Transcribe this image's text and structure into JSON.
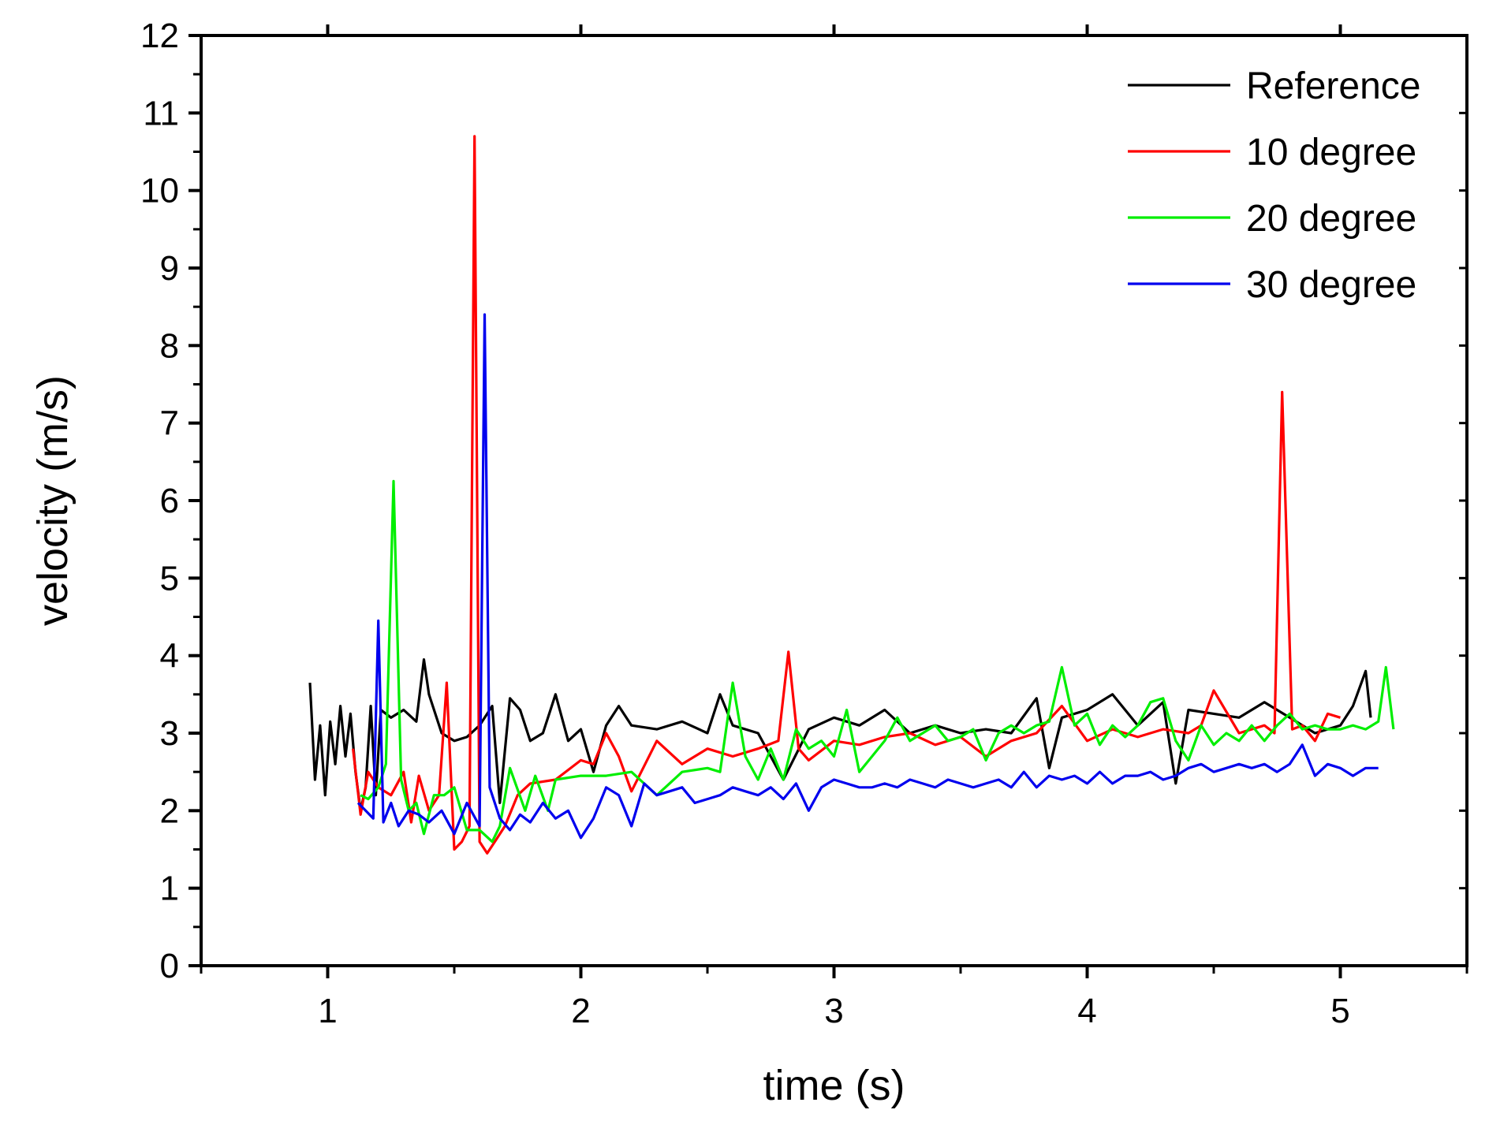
{
  "chart_data": {
    "type": "line",
    "title": "",
    "xlabel": "time (s)",
    "ylabel": "velocity (m/s)",
    "xlim": [
      0.5,
      5.5
    ],
    "ylim": [
      0,
      12
    ],
    "xticks": [
      1,
      2,
      3,
      4,
      5
    ],
    "yticks": [
      0,
      1,
      2,
      3,
      4,
      5,
      6,
      7,
      8,
      9,
      10,
      11,
      12
    ],
    "grid": false,
    "legend_position": "top-right",
    "series": [
      {
        "name": "Reference",
        "color": "#000000",
        "x": [
          0.93,
          0.95,
          0.97,
          0.99,
          1.01,
          1.03,
          1.05,
          1.07,
          1.09,
          1.11,
          1.13,
          1.15,
          1.17,
          1.19,
          1.21,
          1.25,
          1.3,
          1.35,
          1.38,
          1.4,
          1.45,
          1.5,
          1.55,
          1.6,
          1.65,
          1.68,
          1.72,
          1.76,
          1.8,
          1.85,
          1.9,
          1.95,
          2.0,
          2.05,
          2.1,
          2.15,
          2.2,
          2.3,
          2.4,
          2.5,
          2.55,
          2.6,
          2.7,
          2.8,
          2.9,
          3.0,
          3.1,
          3.2,
          3.3,
          3.4,
          3.5,
          3.6,
          3.7,
          3.8,
          3.85,
          3.9,
          4.0,
          4.1,
          4.2,
          4.3,
          4.35,
          4.4,
          4.5,
          4.6,
          4.7,
          4.8,
          4.9,
          5.0,
          5.05,
          5.1,
          5.12
        ],
        "y": [
          3.65,
          2.4,
          3.1,
          2.2,
          3.15,
          2.6,
          3.35,
          2.7,
          3.25,
          2.5,
          2.0,
          2.3,
          3.35,
          2.2,
          3.3,
          3.2,
          3.3,
          3.15,
          3.95,
          3.5,
          3.0,
          2.9,
          2.95,
          3.1,
          3.35,
          2.1,
          3.45,
          3.3,
          2.9,
          3.0,
          3.5,
          2.9,
          3.05,
          2.5,
          3.1,
          3.35,
          3.1,
          3.05,
          3.15,
          3.0,
          3.5,
          3.1,
          3.0,
          2.4,
          3.05,
          3.2,
          3.1,
          3.3,
          3.0,
          3.1,
          3.0,
          3.05,
          3.0,
          3.45,
          2.55,
          3.2,
          3.3,
          3.5,
          3.1,
          3.4,
          2.35,
          3.3,
          3.25,
          3.2,
          3.4,
          3.2,
          3.0,
          3.1,
          3.35,
          3.8,
          3.2
        ]
      },
      {
        "name": "10 degree",
        "color": "#ff0000",
        "x": [
          1.1,
          1.13,
          1.16,
          1.2,
          1.25,
          1.3,
          1.33,
          1.36,
          1.4,
          1.44,
          1.47,
          1.5,
          1.53,
          1.56,
          1.58,
          1.6,
          1.63,
          1.66,
          1.7,
          1.75,
          1.8,
          1.9,
          2.0,
          2.05,
          2.1,
          2.15,
          2.2,
          2.3,
          2.4,
          2.5,
          2.6,
          2.7,
          2.78,
          2.82,
          2.86,
          2.9,
          3.0,
          3.1,
          3.2,
          3.3,
          3.4,
          3.5,
          3.6,
          3.7,
          3.8,
          3.9,
          4.0,
          4.1,
          4.2,
          4.3,
          4.4,
          4.45,
          4.5,
          4.6,
          4.7,
          4.74,
          4.77,
          4.81,
          4.85,
          4.9,
          4.95,
          5.0
        ],
        "y": [
          2.8,
          1.95,
          2.5,
          2.3,
          2.2,
          2.5,
          1.85,
          2.45,
          2.0,
          2.2,
          3.65,
          1.5,
          1.6,
          1.8,
          10.7,
          1.6,
          1.45,
          1.6,
          1.8,
          2.2,
          2.35,
          2.4,
          2.65,
          2.6,
          3.0,
          2.7,
          2.25,
          2.9,
          2.6,
          2.8,
          2.7,
          2.8,
          2.9,
          4.05,
          2.8,
          2.65,
          2.9,
          2.85,
          2.95,
          3.0,
          2.85,
          2.95,
          2.7,
          2.9,
          3.0,
          3.35,
          2.9,
          3.05,
          2.95,
          3.05,
          3.0,
          3.1,
          3.55,
          3.0,
          3.1,
          3.0,
          7.4,
          3.05,
          3.1,
          2.9,
          3.25,
          3.2
        ]
      },
      {
        "name": "20 degree",
        "color": "#00ee00",
        "x": [
          1.13,
          1.16,
          1.2,
          1.23,
          1.26,
          1.29,
          1.32,
          1.35,
          1.38,
          1.42,
          1.46,
          1.5,
          1.55,
          1.6,
          1.65,
          1.68,
          1.72,
          1.78,
          1.82,
          1.87,
          1.9,
          2.0,
          2.1,
          2.2,
          2.3,
          2.35,
          2.4,
          2.5,
          2.55,
          2.6,
          2.65,
          2.7,
          2.75,
          2.8,
          2.85,
          2.9,
          2.95,
          3.0,
          3.05,
          3.1,
          3.15,
          3.2,
          3.25,
          3.3,
          3.35,
          3.4,
          3.45,
          3.5,
          3.55,
          3.6,
          3.65,
          3.7,
          3.75,
          3.8,
          3.85,
          3.9,
          3.95,
          4.0,
          4.05,
          4.1,
          4.15,
          4.2,
          4.25,
          4.3,
          4.35,
          4.4,
          4.45,
          4.5,
          4.55,
          4.6,
          4.65,
          4.7,
          4.75,
          4.8,
          4.85,
          4.9,
          4.95,
          5.0,
          5.05,
          5.1,
          5.15,
          5.18,
          5.21
        ],
        "y": [
          2.2,
          2.15,
          2.3,
          2.6,
          6.25,
          2.4,
          2.0,
          2.1,
          1.7,
          2.2,
          2.2,
          2.3,
          1.75,
          1.75,
          1.6,
          1.8,
          2.55,
          2.0,
          2.45,
          2.0,
          2.4,
          2.45,
          2.45,
          2.5,
          2.2,
          2.35,
          2.5,
          2.55,
          2.5,
          3.65,
          2.7,
          2.4,
          2.8,
          2.4,
          3.05,
          2.8,
          2.9,
          2.7,
          3.3,
          2.5,
          2.7,
          2.9,
          3.2,
          2.9,
          3.0,
          3.1,
          2.9,
          2.95,
          3.05,
          2.65,
          3.0,
          3.1,
          3.0,
          3.1,
          3.15,
          3.85,
          3.1,
          3.25,
          2.85,
          3.1,
          2.95,
          3.1,
          3.4,
          3.45,
          2.9,
          2.65,
          3.1,
          2.85,
          3.0,
          2.9,
          3.1,
          2.9,
          3.1,
          3.25,
          3.05,
          3.1,
          3.05,
          3.05,
          3.1,
          3.05,
          3.15,
          3.85,
          3.05
        ]
      },
      {
        "name": "30 degree",
        "color": "#0000ee",
        "x": [
          1.12,
          1.15,
          1.18,
          1.2,
          1.22,
          1.25,
          1.28,
          1.32,
          1.36,
          1.4,
          1.45,
          1.5,
          1.55,
          1.6,
          1.62,
          1.64,
          1.68,
          1.72,
          1.76,
          1.8,
          1.85,
          1.9,
          1.95,
          2.0,
          2.05,
          2.1,
          2.15,
          2.2,
          2.25,
          2.3,
          2.35,
          2.4,
          2.45,
          2.5,
          2.55,
          2.6,
          2.65,
          2.7,
          2.75,
          2.8,
          2.85,
          2.9,
          2.95,
          3.0,
          3.05,
          3.1,
          3.15,
          3.2,
          3.25,
          3.3,
          3.35,
          3.4,
          3.45,
          3.5,
          3.55,
          3.6,
          3.65,
          3.7,
          3.75,
          3.8,
          3.85,
          3.9,
          3.95,
          4.0,
          4.05,
          4.1,
          4.15,
          4.2,
          4.25,
          4.3,
          4.35,
          4.4,
          4.45,
          4.5,
          4.55,
          4.6,
          4.65,
          4.7,
          4.75,
          4.8,
          4.85,
          4.9,
          4.95,
          5.0,
          5.05,
          5.1,
          5.15
        ],
        "y": [
          2.1,
          2.0,
          1.9,
          4.45,
          1.85,
          2.1,
          1.8,
          2.0,
          1.95,
          1.85,
          2.0,
          1.7,
          2.1,
          1.8,
          8.4,
          2.3,
          1.9,
          1.75,
          1.95,
          1.85,
          2.1,
          1.9,
          2.0,
          1.65,
          1.9,
          2.3,
          2.2,
          1.8,
          2.35,
          2.2,
          2.25,
          2.3,
          2.1,
          2.15,
          2.2,
          2.3,
          2.25,
          2.2,
          2.3,
          2.15,
          2.35,
          2.0,
          2.3,
          2.4,
          2.35,
          2.3,
          2.3,
          2.35,
          2.3,
          2.4,
          2.35,
          2.3,
          2.4,
          2.35,
          2.3,
          2.35,
          2.4,
          2.3,
          2.5,
          2.3,
          2.45,
          2.4,
          2.45,
          2.35,
          2.5,
          2.35,
          2.45,
          2.45,
          2.5,
          2.4,
          2.45,
          2.55,
          2.6,
          2.5,
          2.55,
          2.6,
          2.55,
          2.6,
          2.5,
          2.6,
          2.85,
          2.45,
          2.6,
          2.55,
          2.45,
          2.55,
          2.55
        ]
      }
    ]
  }
}
